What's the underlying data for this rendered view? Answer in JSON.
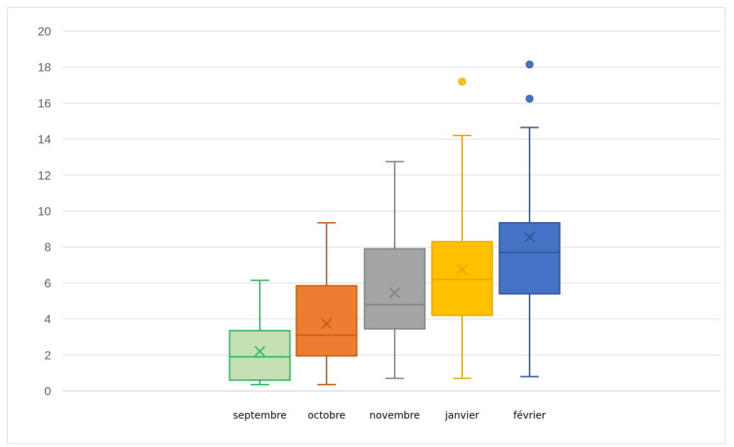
{
  "chart_data": {
    "type": "boxplot",
    "title": "",
    "xlabel": "",
    "ylabel": "",
    "ylim": [
      0,
      20
    ],
    "yticks": [
      0,
      2,
      4,
      6,
      8,
      10,
      12,
      14,
      16,
      18,
      20
    ],
    "grid": true,
    "categories": [
      "septembre",
      "octobre",
      "novembre",
      "janvier",
      "février"
    ],
    "series": [
      {
        "category": "septembre",
        "min": 0.35,
        "q1": 0.6,
        "median": 1.9,
        "q3": 3.35,
        "max": 6.15,
        "mean": 2.2,
        "outliers": [],
        "stroke": "#2db35a",
        "fill": "#c5e0b4"
      },
      {
        "category": "octobre",
        "min": 0.35,
        "q1": 1.95,
        "median": 3.1,
        "q3": 5.85,
        "max": 9.35,
        "mean": 3.75,
        "outliers": [],
        "stroke": "#c55a11",
        "fill": "#ed7d31"
      },
      {
        "category": "novembre",
        "min": 0.7,
        "q1": 3.45,
        "median": 4.8,
        "q3": 7.9,
        "max": 12.75,
        "mean": 5.45,
        "outliers": [],
        "stroke": "#7f7f7f",
        "fill": "#a5a5a5"
      },
      {
        "category": "janvier",
        "min": 0.7,
        "q1": 4.2,
        "median": 6.2,
        "q3": 8.3,
        "max": 14.2,
        "mean": 6.75,
        "outliers": [
          17.2
        ],
        "stroke": "#e6a800",
        "fill": "#ffc000"
      },
      {
        "category": "février",
        "min": 0.8,
        "q1": 5.4,
        "median": 7.7,
        "q3": 9.35,
        "max": 14.65,
        "mean": 8.55,
        "outliers": [
          16.25,
          18.15
        ],
        "stroke": "#2f5597",
        "fill": "#4472c4"
      }
    ]
  }
}
